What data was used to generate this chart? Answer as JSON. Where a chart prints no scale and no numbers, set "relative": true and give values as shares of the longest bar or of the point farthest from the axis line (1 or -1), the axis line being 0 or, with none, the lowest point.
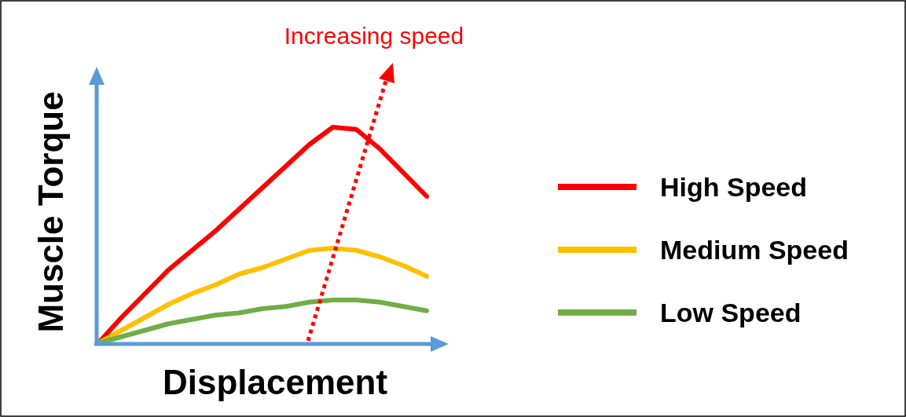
{
  "chart_data": {
    "type": "line",
    "relative": true,
    "xlabel": "Displacement",
    "ylabel": "Muscle Torque",
    "legend": "right",
    "annotations": [
      "Increasing speed"
    ],
    "categories": [
      null,
      null,
      null,
      null,
      null,
      null,
      null,
      null,
      null,
      null,
      null,
      null,
      null,
      null,
      null
    ],
    "series": [
      {
        "name": "High Speed",
        "color": "#ff0000",
        "values": [
          0,
          0.12,
          0.23,
          0.34,
          0.43,
          0.52,
          0.62,
          0.72,
          0.82,
          0.92,
          1,
          0.99,
          0.9,
          0.79,
          0.68
        ]
      },
      {
        "name": "Medium Speed",
        "color": "#ffc000",
        "values": [
          0,
          0.06,
          0.12,
          0.18,
          0.23,
          0.27,
          0.32,
          0.35,
          0.39,
          0.43,
          0.44,
          0.43,
          0.4,
          0.36,
          0.31
        ]
      },
      {
        "name": "Low Speed",
        "color": "#70ad47",
        "values": [
          0,
          0.03,
          0.06,
          0.09,
          0.11,
          0.13,
          0.14,
          0.16,
          0.17,
          0.19,
          0.2,
          0.2,
          0.19,
          0.17,
          0.15
        ]
      }
    ]
  }
}
